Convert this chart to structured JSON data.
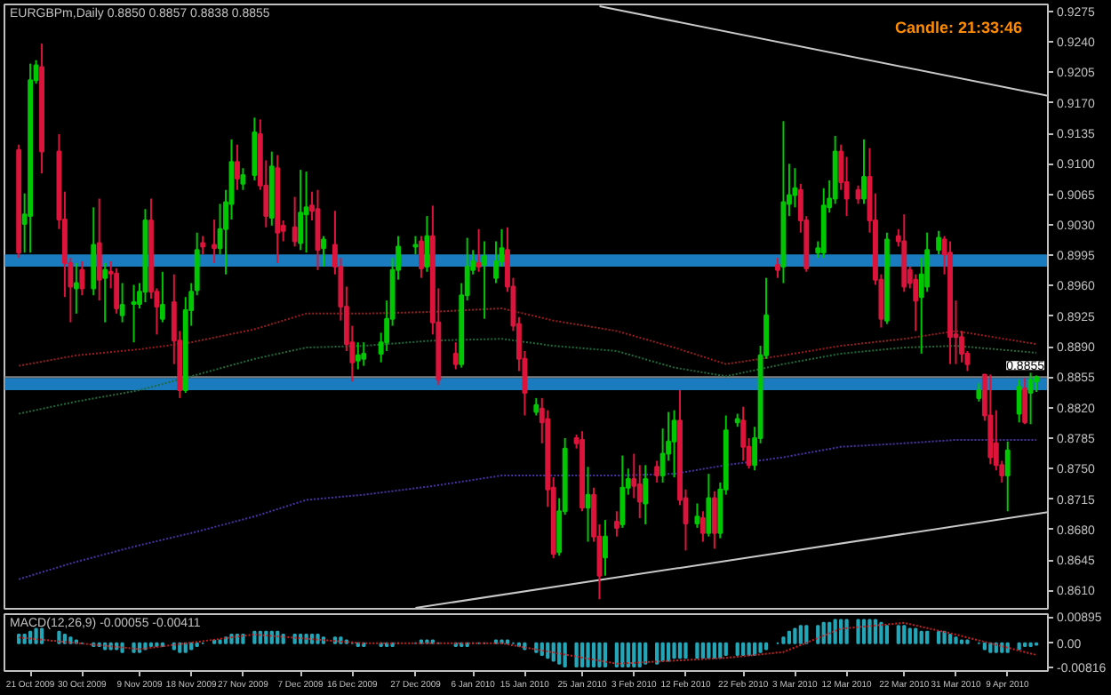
{
  "chart_data": [
    {
      "type": "candlestick",
      "title": "EURGBPm,Daily 0.8850 0.8857 0.8838 0.8855",
      "annotations": [
        "Candle:  21:33:46"
      ],
      "x": [
        "2009-10-19",
        "2009-10-20",
        "2009-10-21",
        "2009-10-22",
        "2009-10-23",
        "2009-10-26",
        "2009-10-27",
        "2009-10-28",
        "2009-10-29",
        "2009-10-30",
        "2009-11-01",
        "2009-11-02",
        "2009-11-03",
        "2009-11-04",
        "2009-11-05",
        "2009-11-06",
        "2009-11-08",
        "2009-11-09",
        "2009-11-10",
        "2009-11-11",
        "2009-11-12",
        "2009-11-13",
        "2009-11-15",
        "2009-11-16",
        "2009-11-17",
        "2009-11-18",
        "2009-11-19",
        "2009-11-20",
        "2009-11-22",
        "2009-11-23",
        "2009-11-24",
        "2009-11-25",
        "2009-11-26",
        "2009-11-27",
        "2009-11-29",
        "2009-11-30",
        "2009-12-01",
        "2009-12-02",
        "2009-12-03",
        "2009-12-04",
        "2009-12-06",
        "2009-12-07",
        "2009-12-08",
        "2009-12-09",
        "2009-12-10",
        "2009-12-11",
        "2009-12-13",
        "2009-12-14",
        "2009-12-15",
        "2009-12-16",
        "2009-12-17",
        "2009-12-18",
        "2009-12-21",
        "2009-12-22",
        "2009-12-23",
        "2009-12-24",
        "2009-12-27",
        "2009-12-28",
        "2009-12-29",
        "2009-12-30",
        "2009-12-31",
        "2010-01-03",
        "2010-01-04",
        "2010-01-05",
        "2010-01-06",
        "2010-01-07",
        "2010-01-08",
        "2010-01-10",
        "2010-01-11",
        "2010-01-12",
        "2010-01-13",
        "2010-01-14",
        "2010-01-15",
        "2010-01-17",
        "2010-01-18",
        "2010-01-19",
        "2010-01-20",
        "2010-01-21",
        "2010-01-22",
        "2010-01-24",
        "2010-01-25",
        "2010-01-26",
        "2010-01-27",
        "2010-01-28",
        "2010-01-29",
        "2010-01-31",
        "2010-02-01",
        "2010-02-02",
        "2010-02-03",
        "2010-02-04",
        "2010-02-05",
        "2010-02-07",
        "2010-02-08",
        "2010-02-09",
        "2010-02-10",
        "2010-02-11",
        "2010-02-12",
        "2010-02-14",
        "2010-02-15",
        "2010-02-16",
        "2010-02-17",
        "2010-02-18",
        "2010-02-19",
        "2010-02-21",
        "2010-02-22",
        "2010-02-23",
        "2010-02-24",
        "2010-02-25",
        "2010-02-26",
        "2010-02-28",
        "2010-03-01",
        "2010-03-02",
        "2010-03-03",
        "2010-03-04",
        "2010-03-05",
        "2010-03-07",
        "2010-03-08",
        "2010-03-09",
        "2010-03-10",
        "2010-03-11",
        "2010-03-12",
        "2010-03-14",
        "2010-03-15",
        "2010-03-16",
        "2010-03-17",
        "2010-03-18",
        "2010-03-19",
        "2010-03-21",
        "2010-03-22",
        "2010-03-23",
        "2010-03-24",
        "2010-03-25",
        "2010-03-26",
        "2010-03-28",
        "2010-03-29",
        "2010-03-30",
        "2010-03-31",
        "2010-04-01",
        "2010-04-02",
        "2010-04-04",
        "2010-04-05",
        "2010-04-06",
        "2010-04-07",
        "2010-04-08",
        "2010-04-09",
        "2010-04-11",
        "2010-04-12",
        "2010-04-13",
        "2010-04-14"
      ],
      "ohlc": [
        [
          0.9116,
          0.9122,
          0.8992,
          0.8998
        ],
        [
          0.9031,
          0.9066,
          0.8998,
          0.9042
        ],
        [
          0.904,
          0.9215,
          0.8998,
          0.9196
        ],
        [
          0.9196,
          0.9219,
          0.9192,
          0.9213
        ],
        [
          0.9211,
          0.9238,
          0.9089,
          0.9114
        ],
        [
          0.9114,
          0.9134,
          0.9025,
          0.9036
        ],
        [
          0.9036,
          0.9068,
          0.8947,
          0.8986
        ],
        [
          0.8986,
          0.8992,
          0.8918,
          0.8959
        ],
        [
          0.8957,
          0.8986,
          0.8928,
          0.8963
        ],
        [
          0.8978,
          0.8988,
          0.8949,
          0.8957
        ],
        [
          0.8957,
          0.905,
          0.8949,
          0.9007
        ],
        [
          0.9009,
          0.906,
          0.8943,
          0.8967
        ],
        [
          0.8969,
          0.8986,
          0.8918,
          0.8978
        ],
        [
          0.8976,
          0.8988,
          0.8957,
          0.8974
        ],
        [
          0.8974,
          0.898,
          0.8928,
          0.8934
        ],
        [
          0.8926,
          0.8963,
          0.8918,
          0.8938
        ],
        [
          0.8939,
          0.8961,
          0.8895,
          0.8941
        ],
        [
          0.8939,
          0.8963,
          0.8934,
          0.8953
        ],
        [
          0.8953,
          0.9048,
          0.8941,
          0.9035
        ],
        [
          0.9035,
          0.906,
          0.8945,
          0.8953
        ],
        [
          0.8953,
          0.8957,
          0.8904,
          0.8936
        ],
        [
          0.8922,
          0.8976,
          0.8918,
          0.8938
        ],
        [
          0.8941,
          0.8973,
          0.887,
          0.8897
        ],
        [
          0.8897,
          0.8908,
          0.8831,
          0.884
        ],
        [
          0.884,
          0.8947,
          0.8837,
          0.8932
        ],
        [
          0.8932,
          0.8963,
          0.8914,
          0.8953
        ],
        [
          0.8955,
          0.9021,
          0.8949,
          0.9001
        ],
        [
          0.9009,
          0.9017,
          0.8996,
          0.9005
        ],
        [
          0.9007,
          0.9036,
          0.8986,
          0.9003
        ],
        [
          0.9003,
          0.9054,
          0.8996,
          0.9025
        ],
        [
          0.9025,
          0.907,
          0.8973,
          0.9056
        ],
        [
          0.9054,
          0.9128,
          0.9036,
          0.9102
        ],
        [
          0.9102,
          0.9122,
          0.907,
          0.9083
        ],
        [
          0.9077,
          0.9095,
          0.907,
          0.9087
        ],
        [
          0.9087,
          0.9153,
          0.9081,
          0.9136
        ],
        [
          0.9134,
          0.9151,
          0.907,
          0.9075
        ],
        [
          0.9075,
          0.9104,
          0.9027,
          0.904
        ],
        [
          0.9038,
          0.9114,
          0.9029,
          0.9097
        ],
        [
          0.9095,
          0.911,
          0.8986,
          0.9021
        ],
        [
          0.9029,
          0.9035,
          0.9011,
          0.9023
        ],
        [
          0.9027,
          0.9062,
          0.9005,
          0.9011
        ],
        [
          0.9009,
          0.9093,
          0.9001,
          0.9044
        ],
        [
          0.9042,
          0.9091,
          0.8998,
          0.905
        ],
        [
          0.9052,
          0.9068,
          0.9035,
          0.9046
        ],
        [
          0.9048,
          0.907,
          0.8978,
          0.9001
        ],
        [
          0.9003,
          0.9017,
          0.8982,
          0.9013
        ],
        [
          0.9007,
          0.9046,
          0.8973,
          0.8982
        ],
        [
          0.8982,
          0.8992,
          0.892,
          0.8936
        ],
        [
          0.8936,
          0.8959,
          0.8885,
          0.8893
        ],
        [
          0.8895,
          0.8914,
          0.885,
          0.8872
        ],
        [
          0.8874,
          0.8895,
          0.8864,
          0.888
        ],
        [
          0.8876,
          0.8895,
          0.8868,
          0.8882
        ],
        [
          0.8882,
          0.8906,
          0.8872,
          0.8895
        ],
        [
          0.8895,
          0.8943,
          0.8885,
          0.8922
        ],
        [
          0.8922,
          0.8992,
          0.8914,
          0.8978
        ],
        [
          0.8978,
          0.9017,
          0.8967,
          0.9005
        ],
        [
          0.9005,
          0.9017,
          0.8996,
          0.9007
        ],
        [
          0.9011,
          0.9017,
          0.8969,
          0.898
        ],
        [
          0.8982,
          0.904,
          0.8976,
          0.9017
        ],
        [
          0.9017,
          0.9052,
          0.8904,
          0.8918
        ],
        [
          0.8918,
          0.8957,
          0.8846,
          0.8852
        ],
        [
          0.8882,
          0.8895,
          0.8864,
          0.887
        ],
        [
          0.887,
          0.8963,
          0.8866,
          0.8949
        ],
        [
          0.8949,
          0.9015,
          0.8943,
          0.8982
        ],
        [
          0.8978,
          0.9001,
          0.8973,
          0.8988
        ],
        [
          0.8986,
          0.9025,
          0.8976,
          0.8982
        ],
        [
          0.8984,
          0.9011,
          0.8922,
          0.8994
        ],
        [
          0.8969,
          0.9011,
          0.8963,
          0.8988
        ],
        [
          0.8988,
          0.9025,
          0.8982,
          0.9003
        ],
        [
          0.9001,
          0.9027,
          0.8953,
          0.8959
        ],
        [
          0.8959,
          0.8969,
          0.8908,
          0.8914
        ],
        [
          0.8916,
          0.8924,
          0.8862,
          0.8876
        ],
        [
          0.8876,
          0.8885,
          0.8811,
          0.8837
        ],
        [
          0.8815,
          0.8831,
          0.8811,
          0.8823
        ],
        [
          0.8819,
          0.8831,
          0.8779,
          0.8803
        ],
        [
          0.8807,
          0.8817,
          0.8706,
          0.8726
        ],
        [
          0.8728,
          0.874,
          0.8647,
          0.8652
        ],
        [
          0.8654,
          0.8716,
          0.865,
          0.8701
        ],
        [
          0.8701,
          0.8785,
          0.8697,
          0.8773
        ],
        [
          0.8785,
          0.8789,
          0.8773,
          0.8779
        ],
        [
          0.8783,
          0.8793,
          0.8701,
          0.8705
        ],
        [
          0.8705,
          0.8752,
          0.8666,
          0.872
        ],
        [
          0.872,
          0.8728,
          0.8666,
          0.8672
        ],
        [
          0.8672,
          0.8686,
          0.86,
          0.8627
        ],
        [
          0.8648,
          0.8691,
          0.8627,
          0.8672
        ],
        [
          0.8689,
          0.8701,
          0.8672,
          0.8682
        ],
        [
          0.8686,
          0.8765,
          0.8682,
          0.8728
        ],
        [
          0.8728,
          0.875,
          0.872,
          0.8738
        ],
        [
          0.8738,
          0.8767,
          0.8716,
          0.873
        ],
        [
          0.8732,
          0.8754,
          0.8693,
          0.8712
        ],
        [
          0.871,
          0.8754,
          0.8686,
          0.8738
        ],
        [
          0.8752,
          0.8759,
          0.8734,
          0.8742
        ],
        [
          0.8742,
          0.8796,
          0.8734,
          0.8767
        ],
        [
          0.8767,
          0.8815,
          0.8759,
          0.8781
        ],
        [
          0.8781,
          0.8817,
          0.874,
          0.8805
        ],
        [
          0.8805,
          0.884,
          0.8708,
          0.8714
        ],
        [
          0.8716,
          0.8726,
          0.8656,
          0.8687
        ],
        [
          0.8687,
          0.871,
          0.8682,
          0.8695
        ],
        [
          0.8693,
          0.8701,
          0.8666,
          0.8676
        ],
        [
          0.8676,
          0.8744,
          0.8672,
          0.8716
        ],
        [
          0.8716,
          0.8724,
          0.8658,
          0.8676
        ],
        [
          0.8676,
          0.8734,
          0.867,
          0.8726
        ],
        [
          0.8726,
          0.8811,
          0.872,
          0.8794
        ],
        [
          0.8803,
          0.8813,
          0.8798,
          0.8807
        ],
        [
          0.8805,
          0.8821,
          0.8759,
          0.8775
        ],
        [
          0.8775,
          0.8785,
          0.875,
          0.8754
        ],
        [
          0.8754,
          0.8798,
          0.8748,
          0.8785
        ],
        [
          0.8785,
          0.8891,
          0.8779,
          0.888
        ],
        [
          0.888,
          0.8969,
          0.8876,
          0.8926
        ],
        [
          0.8984,
          0.8992,
          0.8969,
          0.8978
        ],
        [
          0.8982,
          0.9149,
          0.8963,
          0.9056
        ],
        [
          0.9054,
          0.91,
          0.904,
          0.9064
        ],
        [
          0.9064,
          0.9095,
          0.905,
          0.9072
        ],
        [
          0.907,
          0.9077,
          0.9021,
          0.9035
        ],
        [
          0.9035,
          0.904,
          0.8976,
          0.898
        ],
        [
          0.8998,
          0.9011,
          0.8992,
          0.9003
        ],
        [
          0.8998,
          0.9072,
          0.8992,
          0.9052
        ],
        [
          0.905,
          0.9081,
          0.9044,
          0.906
        ],
        [
          0.906,
          0.9132,
          0.9054,
          0.9114
        ],
        [
          0.9114,
          0.9122,
          0.907,
          0.9079
        ],
        [
          0.9079,
          0.9108,
          0.904,
          0.906
        ],
        [
          0.907,
          0.9075,
          0.9054,
          0.906
        ],
        [
          0.906,
          0.9128,
          0.9054,
          0.9085
        ],
        [
          0.9085,
          0.9118,
          0.9021,
          0.9035
        ],
        [
          0.9035,
          0.9066,
          0.8961,
          0.8967
        ],
        [
          0.8967,
          0.8973,
          0.8912,
          0.8922
        ],
        [
          0.892,
          0.9021,
          0.8916,
          0.9013
        ],
        [
          0.9017,
          0.9025,
          0.9005,
          0.9011
        ],
        [
          0.9011,
          0.9042,
          0.8953,
          0.8959
        ],
        [
          0.8978,
          0.8982,
          0.8957,
          0.8963
        ],
        [
          0.8967,
          0.8973,
          0.8908,
          0.8943
        ],
        [
          0.8947,
          0.8992,
          0.8882,
          0.8973
        ],
        [
          0.8959,
          0.9021,
          0.8953,
          0.9001
        ],
        [
          0.9001,
          0.9023,
          0.8996,
          0.9015
        ],
        [
          0.9013,
          0.9017,
          0.8973,
          0.8996
        ],
        [
          0.8998,
          0.9011,
          0.887,
          0.8901
        ],
        [
          0.8904,
          0.8943,
          0.887,
          0.8901
        ],
        [
          0.8901,
          0.8908,
          0.8872,
          0.8882
        ],
        [
          0.8882,
          0.8885,
          0.8862,
          0.887
        ],
        [
          0.8831,
          0.8848,
          0.8827,
          0.884
        ],
        [
          0.8858,
          0.8858,
          0.8805,
          0.8811
        ],
        [
          0.8811,
          0.8858,
          0.8755,
          0.8763
        ],
        [
          0.8779,
          0.8817,
          0.8748,
          0.8754
        ],
        [
          0.8754,
          0.8759,
          0.8734,
          0.8742
        ],
        [
          0.8742,
          0.8781,
          0.8701,
          0.8771
        ],
        [
          0.8813,
          0.8852,
          0.8803,
          0.8844
        ],
        [
          0.8842,
          0.8854,
          0.8801,
          0.8803
        ],
        [
          0.8837,
          0.886,
          0.8801,
          0.8852
        ],
        [
          0.885,
          0.8857,
          0.8838,
          0.8855
        ]
      ],
      "colors": [
        "#dc143c",
        "#00c800",
        "#00c800",
        "#00c800",
        "#dc143c",
        "#dc143c",
        "#dc143c",
        "#dc143c",
        "#00c800",
        "#dc143c",
        "#00c800",
        "#dc143c",
        "#00c800",
        "#dc143c",
        "#dc143c",
        "#00c800",
        "#00c800",
        "#00c800",
        "#00c800",
        "#dc143c",
        "#dc143c",
        "#00c800",
        "#dc143c",
        "#dc143c",
        "#00c800",
        "#00c800",
        "#00c800",
        "#dc143c",
        "#dc143c",
        "#00c800",
        "#00c800",
        "#00c800",
        "#dc143c",
        "#00c800",
        "#00c800",
        "#dc143c",
        "#dc143c",
        "#00c800",
        "#dc143c",
        "#dc143c",
        "#dc143c",
        "#00c800",
        "#00c800",
        "#dc143c",
        "#dc143c",
        "#00c800",
        "#dc143c",
        "#dc143c",
        "#dc143c",
        "#dc143c",
        "#00c800",
        "#00c800",
        "#00c800",
        "#00c800",
        "#00c800",
        "#00c800",
        "#00c800",
        "#dc143c",
        "#00c800",
        "#dc143c",
        "#dc143c",
        "#dc143c",
        "#00c800",
        "#00c800",
        "#00c800",
        "#dc143c",
        "#00c800",
        "#00c800",
        "#00c800",
        "#dc143c",
        "#dc143c",
        "#dc143c",
        "#dc143c",
        "#00c800",
        "#dc143c",
        "#dc143c",
        "#dc143c",
        "#00c800",
        "#00c800",
        "#dc143c",
        "#dc143c",
        "#00c800",
        "#dc143c",
        "#dc143c",
        "#00c800",
        "#dc143c",
        "#00c800",
        "#00c800",
        "#dc143c",
        "#dc143c",
        "#00c800",
        "#dc143c",
        "#00c800",
        "#00c800",
        "#00c800",
        "#dc143c",
        "#dc143c",
        "#00c800",
        "#dc143c",
        "#00c800",
        "#dc143c",
        "#00c800",
        "#00c800",
        "#00c800",
        "#dc143c",
        "#dc143c",
        "#00c800",
        "#00c800",
        "#00c800",
        "#dc143c",
        "#00c800",
        "#00c800",
        "#00c800",
        "#dc143c",
        "#dc143c",
        "#00c800",
        "#00c800",
        "#00c800",
        "#00c800",
        "#dc143c",
        "#dc143c",
        "#dc143c",
        "#00c800",
        "#dc143c",
        "#dc143c",
        "#dc143c",
        "#00c800",
        "#dc143c",
        "#dc143c",
        "#dc143c",
        "#dc143c",
        "#00c800",
        "#00c800",
        "#00c800",
        "#dc143c",
        "#dc143c",
        "#dc143c",
        "#dc143c",
        "#dc143c",
        "#00c800",
        "#dc143c",
        "#dc143c",
        "#dc143c",
        "#dc143c",
        "#00c800",
        "#00c800",
        "#dc143c",
        "#00c800",
        "#00c800"
      ],
      "series": [
        {
          "type": "line",
          "color": "#9a1c1c",
          "line_style": "dotted",
          "x": [
            "2009-10-19",
            "2009-10-29",
            "2009-11-09",
            "2009-11-18",
            "2009-11-29",
            "2009-12-08",
            "2009-12-18",
            "2009-12-30",
            "2010-01-11",
            "2010-01-20",
            "2010-01-31",
            "2010-02-10",
            "2010-02-19",
            "2010-03-01",
            "2010-03-11",
            "2010-03-22",
            "2010-03-31",
            "2010-04-14"
          ],
          "values": [
            0.8868,
            0.888,
            0.8887,
            0.8895,
            0.891,
            0.8928,
            0.8928,
            0.893,
            0.8934,
            0.892,
            0.8908,
            0.8889,
            0.887,
            0.888,
            0.8891,
            0.8899,
            0.8908,
            0.8893
          ]
        },
        {
          "type": "line",
          "color": "#1f6b3a",
          "line_style": "dotted",
          "x": [
            "2009-10-19",
            "2009-10-29",
            "2009-11-09",
            "2009-11-18",
            "2009-11-29",
            "2009-12-08",
            "2009-12-18",
            "2009-12-30",
            "2010-01-11",
            "2010-01-20",
            "2010-01-31",
            "2010-02-10",
            "2010-02-19",
            "2010-03-01",
            "2010-03-11",
            "2010-03-22",
            "2010-03-31",
            "2010-04-14"
          ],
          "values": [
            0.8813,
            0.8827,
            0.884,
            0.8856,
            0.8876,
            0.8889,
            0.8891,
            0.8897,
            0.8899,
            0.8891,
            0.8885,
            0.8866,
            0.8856,
            0.887,
            0.8882,
            0.8889,
            0.8891,
            0.8883
          ]
        },
        {
          "type": "line",
          "color": "#4b32a8",
          "line_style": "dotted",
          "x": [
            "2009-10-19",
            "2009-10-29",
            "2009-11-09",
            "2009-11-18",
            "2009-11-29",
            "2009-12-08",
            "2009-12-18",
            "2009-12-30",
            "2010-01-11",
            "2010-01-20",
            "2010-01-31",
            "2010-02-10",
            "2010-02-19",
            "2010-03-01",
            "2010-03-11",
            "2010-03-22",
            "2010-03-31",
            "2010-04-14"
          ],
          "values": [
            0.8623,
            0.8643,
            0.8662,
            0.8676,
            0.8695,
            0.8714,
            0.872,
            0.873,
            0.8742,
            0.8742,
            0.8742,
            0.8744,
            0.8754,
            0.8763,
            0.8775,
            0.8779,
            0.8783,
            0.8783
          ]
        },
        {
          "type": "line",
          "color": "#c8c8c8",
          "line_style": "solid",
          "x": [
            "2010-01-28",
            "2010-04-16"
          ],
          "values": [
            0.9281,
            0.9178
          ]
        },
        {
          "type": "line",
          "color": "#c8c8c8",
          "line_style": "solid",
          "x": [
            "2009-12-27",
            "2010-04-16"
          ],
          "values": [
            0.859,
            0.87
          ]
        }
      ],
      "bands": [
        {
          "axis": "y",
          "from": 0.8982,
          "to": 0.8996,
          "color": "#1e90e0"
        },
        {
          "axis": "y",
          "from": 0.884,
          "to": 0.8854,
          "color": "#1e90e0"
        }
      ],
      "ref_lines": [
        {
          "axis": "y",
          "value": 0.8855,
          "label": "0.8855",
          "color": "#808080"
        }
      ],
      "xlim": [
        "2009-10-16T12:00",
        "2010-04-16"
      ],
      "ylim": [
        0.8589,
        0.9283
      ],
      "yticks": [
        {
          "value": 0.861,
          "label": "0.8610"
        },
        {
          "value": 0.8645,
          "label": "0.8645"
        },
        {
          "value": 0.868,
          "label": "0.8680"
        },
        {
          "value": 0.8715,
          "label": "0.8715"
        },
        {
          "value": 0.875,
          "label": "0.8750"
        },
        {
          "value": 0.8785,
          "label": "0.8785"
        },
        {
          "value": 0.882,
          "label": "0.8820"
        },
        {
          "value": 0.8855,
          "label": "0.8855"
        },
        {
          "value": 0.889,
          "label": "0.8890"
        },
        {
          "value": 0.8925,
          "label": "0.8925"
        },
        {
          "value": 0.896,
          "label": "0.8960"
        },
        {
          "value": 0.8995,
          "label": "0.8995"
        },
        {
          "value": 0.903,
          "label": "0.9030"
        },
        {
          "value": 0.9065,
          "label": "0.9065"
        },
        {
          "value": 0.91,
          "label": "0.9100"
        },
        {
          "value": 0.9135,
          "label": "0.9135"
        },
        {
          "value": 0.917,
          "label": "0.9170"
        },
        {
          "value": 0.9205,
          "label": "0.9205"
        },
        {
          "value": 0.924,
          "label": "0.9240"
        },
        {
          "value": 0.9275,
          "label": "0.9275"
        }
      ],
      "tick_labels": "y"
    },
    {
      "type": "bar",
      "title": "MACD(12,26,9) -0.00055 -0.00411",
      "x": [
        "2009-10-19",
        "2009-10-20",
        "2009-10-21",
        "2009-10-22",
        "2009-10-23",
        "2009-10-26",
        "2009-10-27",
        "2009-10-28",
        "2009-10-29",
        "2009-10-30",
        "2009-11-01",
        "2009-11-02",
        "2009-11-03",
        "2009-11-04",
        "2009-11-05",
        "2009-11-06",
        "2009-11-08",
        "2009-11-09",
        "2009-11-10",
        "2009-11-11",
        "2009-11-12",
        "2009-11-13",
        "2009-11-15",
        "2009-11-16",
        "2009-11-17",
        "2009-11-18",
        "2009-11-19",
        "2009-11-20",
        "2009-11-22",
        "2009-11-23",
        "2009-11-24",
        "2009-11-25",
        "2009-11-26",
        "2009-11-27",
        "2009-11-29",
        "2009-11-30",
        "2009-12-01",
        "2009-12-02",
        "2009-12-03",
        "2009-12-04",
        "2009-12-06",
        "2009-12-07",
        "2009-12-08",
        "2009-12-09",
        "2009-12-10",
        "2009-12-11",
        "2009-12-13",
        "2009-12-14",
        "2009-12-15",
        "2009-12-16",
        "2009-12-17",
        "2009-12-18",
        "2009-12-21",
        "2009-12-22",
        "2009-12-23",
        "2009-12-24",
        "2009-12-27",
        "2009-12-28",
        "2009-12-29",
        "2009-12-30",
        "2009-12-31",
        "2010-01-03",
        "2010-01-04",
        "2010-01-05",
        "2010-01-06",
        "2010-01-07",
        "2010-01-08",
        "2010-01-10",
        "2010-01-11",
        "2010-01-12",
        "2010-01-13",
        "2010-01-14",
        "2010-01-15",
        "2010-01-17",
        "2010-01-18",
        "2010-01-19",
        "2010-01-20",
        "2010-01-21",
        "2010-01-22",
        "2010-01-24",
        "2010-01-25",
        "2010-01-26",
        "2010-01-27",
        "2010-01-28",
        "2010-01-29",
        "2010-01-31",
        "2010-02-01",
        "2010-02-02",
        "2010-02-03",
        "2010-02-04",
        "2010-02-05",
        "2010-02-07",
        "2010-02-08",
        "2010-02-09",
        "2010-02-10",
        "2010-02-11",
        "2010-02-12",
        "2010-02-14",
        "2010-02-15",
        "2010-02-16",
        "2010-02-17",
        "2010-02-18",
        "2010-02-19",
        "2010-02-21",
        "2010-02-22",
        "2010-02-23",
        "2010-02-24",
        "2010-02-25",
        "2010-02-26",
        "2010-02-28",
        "2010-03-01",
        "2010-03-02",
        "2010-03-03",
        "2010-03-04",
        "2010-03-05",
        "2010-03-07",
        "2010-03-08",
        "2010-03-09",
        "2010-03-10",
        "2010-03-11",
        "2010-03-12",
        "2010-03-14",
        "2010-03-15",
        "2010-03-16",
        "2010-03-17",
        "2010-03-18",
        "2010-03-19",
        "2010-03-21",
        "2010-03-22",
        "2010-03-23",
        "2010-03-24",
        "2010-03-25",
        "2010-03-26",
        "2010-03-28",
        "2010-03-29",
        "2010-03-30",
        "2010-03-31",
        "2010-04-01",
        "2010-04-02",
        "2010-04-04",
        "2010-04-05",
        "2010-04-06",
        "2010-04-07",
        "2010-04-08",
        "2010-04-09",
        "2010-04-11",
        "2010-04-12",
        "2010-04-13",
        "2010-04-14"
      ],
      "series": [
        {
          "type": "bar",
          "color": "#22a6b8",
          "values": [
            0.003,
            0.003,
            0.004,
            0.005,
            0.005,
            0.004,
            0.003,
            0.002,
            0.001,
            0.0,
            -0.001,
            -0.001,
            -0.002,
            -0.002,
            -0.002,
            -0.003,
            -0.003,
            -0.003,
            -0.002,
            -0.001,
            -0.001,
            -0.001,
            -0.002,
            -0.003,
            -0.003,
            -0.002,
            -0.001,
            0.0,
            0.001,
            0.001,
            0.002,
            0.003,
            0.003,
            0.003,
            0.004,
            0.004,
            0.004,
            0.004,
            0.004,
            0.003,
            0.003,
            0.003,
            0.003,
            0.003,
            0.003,
            0.002,
            0.002,
            0.002,
            0.001,
            0.0,
            -0.001,
            -0.001,
            -0.001,
            -0.001,
            -0.001,
            0.0,
            0.0,
            0.001,
            0.001,
            0.001,
            0.0,
            -0.001,
            -0.001,
            -0.001,
            0.0,
            0.0,
            0.0,
            0.001,
            0.001,
            0.001,
            0.0,
            -0.001,
            -0.002,
            -0.003,
            -0.004,
            -0.005,
            -0.006,
            -0.007,
            -0.008,
            -0.008,
            -0.008,
            -0.008,
            -0.008,
            -0.008,
            -0.008,
            -0.008,
            -0.008,
            -0.008,
            -0.008,
            -0.008,
            -0.007,
            -0.007,
            -0.006,
            -0.006,
            -0.005,
            -0.005,
            -0.005,
            -0.005,
            -0.005,
            -0.005,
            -0.005,
            -0.005,
            -0.004,
            -0.004,
            -0.004,
            -0.004,
            -0.004,
            -0.003,
            -0.002,
            0.0,
            0.002,
            0.004,
            0.005,
            0.006,
            0.006,
            0.006,
            0.007,
            0.007,
            0.008,
            0.008,
            0.008,
            0.008,
            0.008,
            0.008,
            0.008,
            0.007,
            0.006,
            0.006,
            0.006,
            0.005,
            0.005,
            0.004,
            0.004,
            0.004,
            0.004,
            0.003,
            0.002,
            0.001,
            0.001,
            0.0,
            -0.002,
            -0.003,
            -0.003,
            -0.003,
            -0.003,
            -0.002,
            -0.001,
            -0.001,
            -0.0005
          ]
        },
        {
          "type": "line",
          "color": "#c81e1e",
          "line_style": "dotted",
          "x": [
            "2009-10-19",
            "2009-11-09",
            "2009-11-29",
            "2009-12-18",
            "2010-01-11",
            "2010-01-31",
            "2010-02-19",
            "2010-03-01",
            "2010-03-11",
            "2010-03-22",
            "2010-03-31",
            "2010-04-14"
          ],
          "values": [
            0.002,
            -0.002,
            0.003,
            0.0,
            0.0,
            -0.007,
            -0.005,
            -0.003,
            0.005,
            0.007,
            0.003,
            -0.004
          ]
        }
      ],
      "xlim": [
        "2009-10-16T12:00",
        "2010-04-16"
      ],
      "xticks": [
        {
          "value": "2009-10-21",
          "label": "21 Oct 2009"
        },
        {
          "value": "2009-10-30",
          "label": "30 Oct 2009"
        },
        {
          "value": "2009-11-09",
          "label": "9 Nov 2009"
        },
        {
          "value": "2009-11-18",
          "label": "18 Nov 2009"
        },
        {
          "value": "2009-11-27",
          "label": "27 Nov 2009"
        },
        {
          "value": "2009-12-07",
          "label": "7 Dec 2009"
        },
        {
          "value": "2009-12-16",
          "label": "16 Dec 2009"
        },
        {
          "value": "2009-12-27",
          "label": "27 Dec 2009"
        },
        {
          "value": "2010-01-06",
          "label": "6 Jan 2010"
        },
        {
          "value": "2010-01-15",
          "label": "15 Jan 2010"
        },
        {
          "value": "2010-01-25",
          "label": "25 Jan 2010"
        },
        {
          "value": "2010-02-03",
          "label": "3 Feb 2010"
        },
        {
          "value": "2010-02-12",
          "label": "12 Feb 2010"
        },
        {
          "value": "2010-02-22",
          "label": "22 Feb 2010"
        },
        {
          "value": "2010-03-03",
          "label": "3 Mar 2010"
        },
        {
          "value": "2010-03-12",
          "label": "12 Mar 2010"
        },
        {
          "value": "2010-03-22",
          "label": "22 Mar 2010"
        },
        {
          "value": "2010-03-31",
          "label": "31 Mar 2010"
        },
        {
          "value": "2010-04-09",
          "label": "9 Apr 2010"
        }
      ],
      "ylim": [
        -0.0095,
        0.01
      ],
      "yticks": [
        {
          "value": 0.00895,
          "label": "0.00895"
        },
        {
          "value": 0,
          "label": "0.00"
        },
        {
          "value": -0.00816,
          "label": "-0.00816"
        }
      ]
    }
  ]
}
